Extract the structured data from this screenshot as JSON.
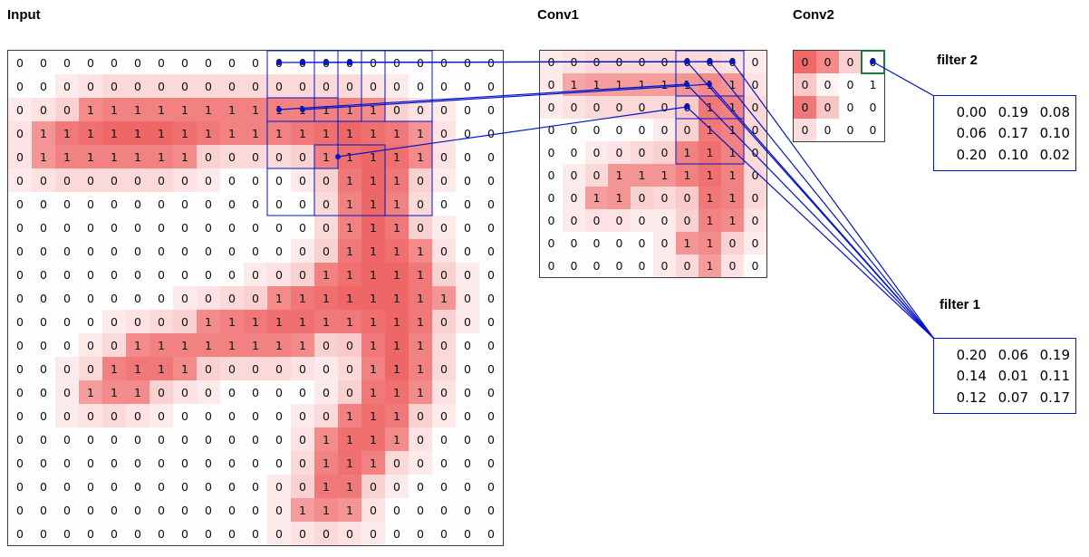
{
  "labels": {
    "input": "Input",
    "conv1": "Conv1",
    "conv2": "Conv2",
    "filter1": "filter 1",
    "filter2": "filter 2"
  },
  "colors": {
    "heat_rgb": "236,68,68",
    "line": "#0014cc",
    "highlight_green": "#1e7a3c",
    "grid_border": "#3c3c3c"
  },
  "input": {
    "rows": 21,
    "cols": 21,
    "values": [
      "000000000000000000000",
      "000000000000000000000",
      "000111111111111100000",
      "011111111111111111000",
      "011111110000011111000",
      "000000000000001110000",
      "000000000000001110000",
      "000000000000001110000",
      "000000000000001111000",
      "000000000000011111000",
      "000000000001111111100",
      "000000001111111111000",
      "000001111111100111000",
      "000011110000000111000",
      "000111000000000111000",
      "000000000000001110000",
      "000000000000011110000",
      "000000000000011100000",
      "000000000000011000000",
      "000000000000111000000",
      "000000000000000000000"
    ]
  },
  "conv1": {
    "rows": 10,
    "cols": 10,
    "values": [
      "0000000000",
      "0111111110",
      "0000000110",
      "0000000110",
      "0000001110",
      "0001111110",
      "0011000110",
      "0000000110",
      "0000001100",
      "0000000100"
    ]
  },
  "conv2": {
    "rows": 4,
    "cols": 4,
    "values": [
      "0000",
      "0001",
      "0000",
      "0000"
    ],
    "heat": [
      [
        0.8,
        0.62,
        0.25,
        0
      ],
      [
        0.28,
        0.06,
        0,
        0
      ],
      [
        0.72,
        0.3,
        0,
        0
      ],
      [
        0.18,
        0,
        0,
        0
      ]
    ],
    "highlight_cell": {
      "row": 0,
      "col": 3
    }
  },
  "filter2": {
    "values": [
      [
        "0.00",
        "0.19",
        "0.08"
      ],
      [
        "0.06",
        "0.17",
        "0.10"
      ],
      [
        "0.20",
        "0.10",
        "0.02"
      ]
    ]
  },
  "filter1": {
    "values": [
      [
        "0.20",
        "0.06",
        "0.19"
      ],
      [
        "0.14",
        "0.01",
        "0.11"
      ],
      [
        "0.12",
        "0.07",
        "0.17"
      ]
    ]
  }
}
